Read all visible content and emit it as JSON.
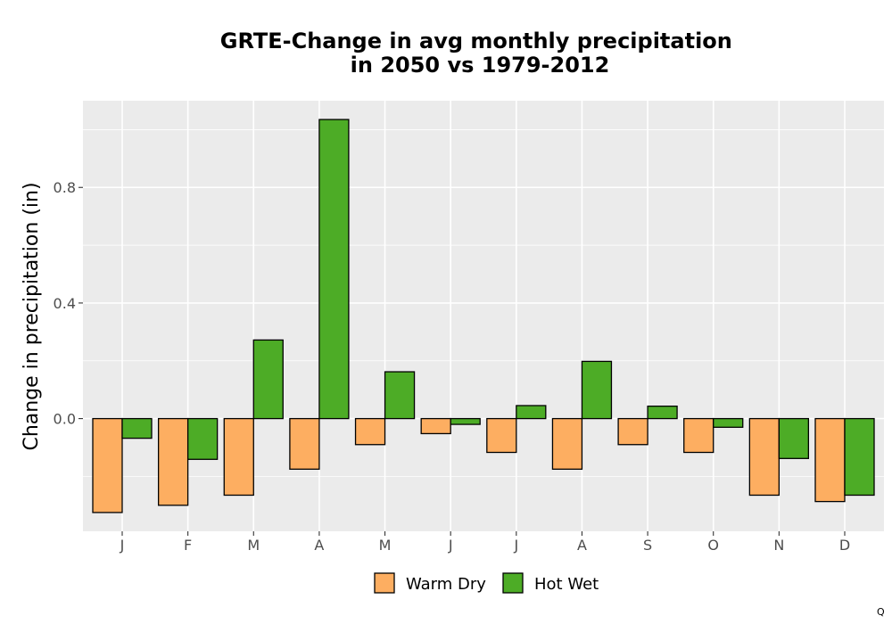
{
  "chart_data": {
    "type": "bar",
    "title": "GRTE-Change in avg monthly precipitation\nin 2050 vs 1979-2012",
    "xlabel": "",
    "ylabel": "Change in precipitation (in)",
    "categories": [
      "J",
      "F",
      "M",
      "A",
      "M",
      "J",
      "J",
      "A",
      "S",
      "O",
      "N",
      "D"
    ],
    "series": [
      {
        "name": "Warm Dry",
        "color": "#fdae61",
        "values": [
          -0.325,
          -0.3,
          -0.265,
          -0.175,
          -0.09,
          -0.052,
          -0.117,
          -0.175,
          -0.09,
          -0.117,
          -0.265,
          -0.287
        ]
      },
      {
        "name": "Hot Wet",
        "color": "#4dac26",
        "values": [
          -0.068,
          -0.141,
          0.272,
          1.035,
          0.162,
          -0.02,
          0.045,
          0.198,
          0.043,
          -0.03,
          -0.138,
          -0.265
        ]
      }
    ],
    "yticks": [
      0.0,
      0.4,
      0.8
    ],
    "ytick_labels": [
      "0.0",
      "0.4",
      "0.8"
    ],
    "ylim": [
      -0.39,
      1.1
    ],
    "grid": true,
    "legend_position": "bottom",
    "bar_outline": "#000000",
    "panel_background": "#ebebeb",
    "grid_color": "#ffffff"
  },
  "corner_mark": "Q"
}
